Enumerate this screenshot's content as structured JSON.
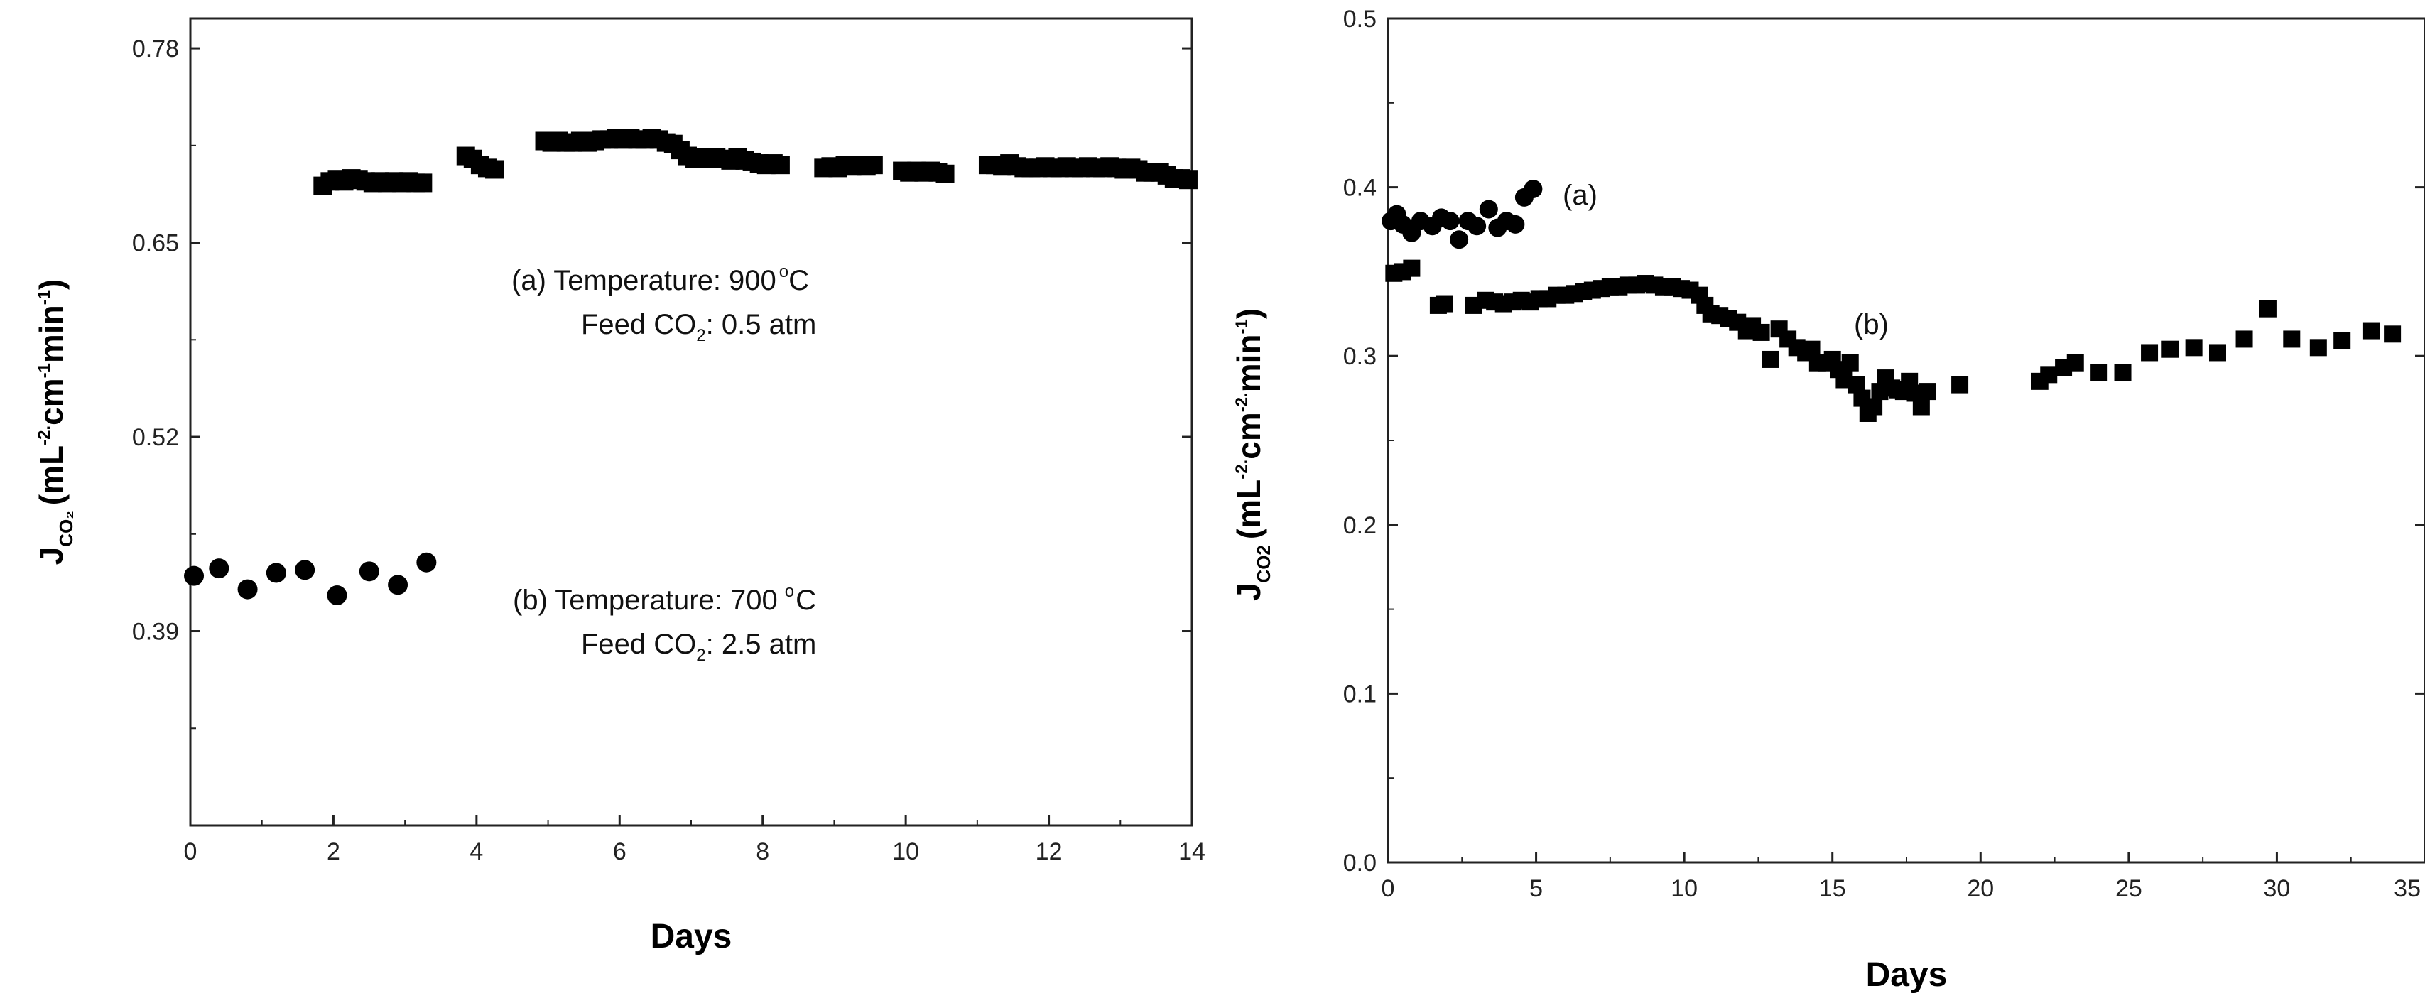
{
  "chart_data": [
    {
      "type": "scatter",
      "xlabel": "Days",
      "ylabel": {
        "main": "J",
        "sub": "CO₂",
        "units_pre": "(mL",
        "units_mid": "cm",
        "units_exp": "-2.",
        "units_mid2": "min",
        "units_exp2": "-1",
        "units_post": ")"
      },
      "xlim": [
        0,
        14
      ],
      "ylim": [
        0.26,
        0.8
      ],
      "xticks": [
        0,
        2,
        4,
        6,
        8,
        10,
        12,
        14
      ],
      "yticks": [
        0.39,
        0.52,
        0.65,
        0.78
      ],
      "annotations": [
        {
          "label": "(a) Temperature: 900",
          "deg": "o",
          "unit": "C",
          "line2_pre": "Feed CO",
          "line2_sub": "2",
          "line2_post": ": 0.5 atm"
        },
        {
          "label": "(b) Temperature: 700",
          "deg": "o",
          "unit": "C",
          "line2_pre": "Feed CO",
          "line2_sub": "2",
          "line2_post": ": 2.5 atm"
        }
      ],
      "series": [
        {
          "name": "(a) 900 °C, 0.5 atm",
          "marker": "square",
          "x": [
            1.85,
            1.95,
            2.05,
            2.15,
            2.25,
            2.35,
            2.45,
            2.55,
            2.65,
            2.75,
            2.85,
            2.95,
            3.05,
            3.15,
            3.25,
            3.85,
            3.95,
            4.05,
            4.15,
            4.25,
            4.95,
            5.05,
            5.15,
            5.25,
            5.35,
            5.45,
            5.55,
            5.65,
            5.75,
            5.85,
            5.95,
            6.05,
            6.15,
            6.25,
            6.35,
            6.45,
            6.55,
            6.65,
            6.75,
            6.85,
            6.95,
            7.05,
            7.15,
            7.25,
            7.35,
            7.45,
            7.55,
            7.65,
            7.75,
            7.85,
            7.95,
            8.05,
            8.15,
            8.25,
            8.85,
            8.95,
            9.05,
            9.15,
            9.25,
            9.35,
            9.45,
            9.55,
            9.95,
            10.05,
            10.15,
            10.25,
            10.35,
            10.45,
            10.55,
            11.15,
            11.25,
            11.35,
            11.45,
            11.55,
            11.65,
            11.75,
            11.85,
            11.95,
            12.05,
            12.15,
            12.25,
            12.35,
            12.45,
            12.55,
            12.65,
            12.75,
            12.85,
            12.95,
            13.05,
            13.15,
            13.25,
            13.35,
            13.45,
            13.55,
            13.65,
            13.75,
            13.85,
            13.95
          ],
          "y": [
            0.688,
            0.691,
            0.692,
            0.691,
            0.693,
            0.692,
            0.691,
            0.69,
            0.691,
            0.69,
            0.691,
            0.69,
            0.691,
            0.69,
            0.69,
            0.708,
            0.706,
            0.702,
            0.7,
            0.699,
            0.718,
            0.717,
            0.718,
            0.717,
            0.717,
            0.718,
            0.717,
            0.718,
            0.719,
            0.719,
            0.72,
            0.719,
            0.72,
            0.719,
            0.719,
            0.72,
            0.719,
            0.717,
            0.716,
            0.712,
            0.708,
            0.706,
            0.707,
            0.706,
            0.707,
            0.706,
            0.705,
            0.707,
            0.705,
            0.704,
            0.703,
            0.702,
            0.703,
            0.702,
            0.7,
            0.701,
            0.7,
            0.702,
            0.701,
            0.702,
            0.701,
            0.702,
            0.698,
            0.697,
            0.698,
            0.697,
            0.698,
            0.697,
            0.696,
            0.702,
            0.702,
            0.701,
            0.703,
            0.701,
            0.7,
            0.7,
            0.7,
            0.701,
            0.7,
            0.7,
            0.701,
            0.7,
            0.7,
            0.701,
            0.7,
            0.7,
            0.701,
            0.7,
            0.699,
            0.7,
            0.699,
            0.697,
            0.697,
            0.697,
            0.695,
            0.693,
            0.693,
            0.692
          ]
        },
        {
          "name": "(b) 700 °C, 2.5 atm",
          "marker": "circle",
          "x": [
            0.05,
            0.4,
            0.8,
            1.2,
            1.6,
            2.05,
            2.5,
            2.9,
            3.3
          ],
          "y": [
            0.427,
            0.432,
            0.418,
            0.429,
            0.431,
            0.414,
            0.43,
            0.421,
            0.436
          ]
        }
      ]
    },
    {
      "type": "scatter",
      "xlabel": "Days",
      "ylabel": {
        "main": "J",
        "sub": "CO2",
        "units_pre": "(mL",
        "units_mid": "cm",
        "units_exp": "-2.",
        "units_mid2": "min",
        "units_exp2": "-1",
        "units_post": ")"
      },
      "xlim": [
        0,
        35
      ],
      "ylim": [
        0.0,
        0.5
      ],
      "xticks": [
        0,
        5,
        10,
        15,
        20,
        25,
        30,
        35
      ],
      "yticks": [
        0.0,
        0.1,
        0.2,
        0.3,
        0.4,
        0.5
      ],
      "ytick_labels": [
        "0.0",
        "0.1",
        "0.2",
        "0.3",
        "0.4",
        "0.5"
      ],
      "annotations": [
        {
          "label": "(a)"
        },
        {
          "label": "(b)"
        }
      ],
      "series": [
        {
          "name": "(a)",
          "marker": "circle",
          "x": [
            0.1,
            0.3,
            0.5,
            0.8,
            1.1,
            1.5,
            1.8,
            2.1,
            2.4,
            2.7,
            3.0,
            3.4,
            3.7,
            4.0,
            4.3,
            4.6,
            4.9
          ],
          "y": [
            0.38,
            0.384,
            0.378,
            0.373,
            0.38,
            0.377,
            0.382,
            0.38,
            0.369,
            0.38,
            0.377,
            0.387,
            0.376,
            0.38,
            0.378,
            0.394,
            0.399
          ]
        },
        {
          "name": "(b)",
          "marker": "square",
          "x": [
            0.2,
            0.5,
            0.8,
            1.7,
            1.9,
            2.9,
            3.3,
            3.6,
            3.9,
            4.2,
            4.5,
            4.8,
            5.1,
            5.4,
            5.7,
            6.0,
            6.3,
            6.6,
            6.9,
            7.2,
            7.5,
            7.8,
            8.1,
            8.4,
            8.7,
            9.0,
            9.3,
            9.6,
            9.9,
            10.2,
            10.5,
            10.7,
            10.9,
            11.2,
            11.5,
            11.8,
            12.1,
            12.3,
            12.6,
            12.9,
            13.2,
            13.5,
            13.8,
            14.1,
            14.3,
            14.5,
            14.8,
            15.0,
            15.2,
            15.4,
            15.6,
            15.8,
            16.0,
            16.2,
            16.4,
            16.6,
            16.8,
            17.0,
            17.2,
            17.4,
            17.6,
            17.8,
            18.0,
            18.2,
            19.3,
            22.0,
            22.3,
            22.8,
            23.2,
            24.0,
            24.8,
            25.7,
            26.4,
            27.2,
            28.0,
            28.9,
            29.7,
            30.5,
            31.4,
            32.2,
            33.2,
            33.9
          ],
          "y": [
            0.349,
            0.35,
            0.352,
            0.33,
            0.331,
            0.33,
            0.333,
            0.332,
            0.331,
            0.332,
            0.333,
            0.332,
            0.334,
            0.334,
            0.336,
            0.336,
            0.337,
            0.338,
            0.339,
            0.34,
            0.341,
            0.341,
            0.342,
            0.342,
            0.343,
            0.342,
            0.341,
            0.341,
            0.34,
            0.339,
            0.336,
            0.33,
            0.325,
            0.324,
            0.322,
            0.32,
            0.315,
            0.318,
            0.314,
            0.298,
            0.316,
            0.31,
            0.305,
            0.302,
            0.304,
            0.296,
            0.296,
            0.298,
            0.292,
            0.286,
            0.296,
            0.283,
            0.275,
            0.266,
            0.27,
            0.279,
            0.287,
            0.281,
            0.28,
            0.279,
            0.285,
            0.278,
            0.27,
            0.279,
            0.283,
            0.285,
            0.289,
            0.293,
            0.296,
            0.29,
            0.29,
            0.302,
            0.304,
            0.305,
            0.302,
            0.31,
            0.328,
            0.31,
            0.305,
            0.309,
            0.315,
            0.313
          ]
        }
      ]
    }
  ]
}
